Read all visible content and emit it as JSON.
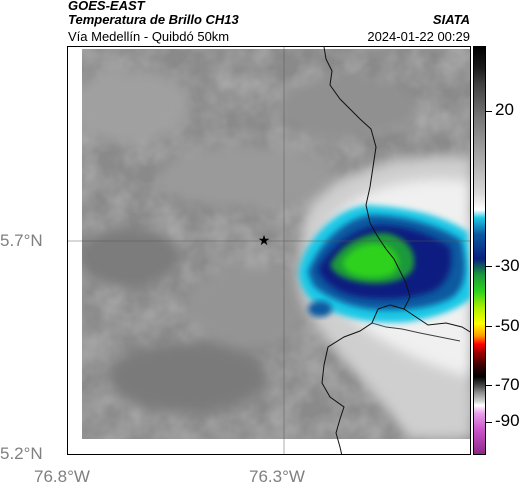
{
  "header": {
    "satellite": "GOES-EAST",
    "product": "Temperatura de Brillo CH13",
    "region": "Vía Medellín - Quibdó 50km",
    "organization": "SIATA",
    "datetime": "2024-01-22 00:29"
  },
  "map": {
    "lat_labels": [
      "5.7°N",
      "5.2°N"
    ],
    "lon_labels": [
      "76.8°W",
      "76.3°W"
    ],
    "marker_icon": "star-icon",
    "cloud_colors": {
      "gray_dark": "#6e6e6e",
      "gray_light": "#c8c8c8",
      "white": "#f2f2f2",
      "cyan": "#1ec8e6",
      "blue": "#0a5aa0",
      "navy": "#0a1f80",
      "green": "#2dd21e"
    }
  },
  "colorbar": {
    "labels": [
      "20",
      "-30",
      "-50",
      "-70",
      "-90"
    ],
    "unit_hint": "Temperatura de Brillo"
  }
}
